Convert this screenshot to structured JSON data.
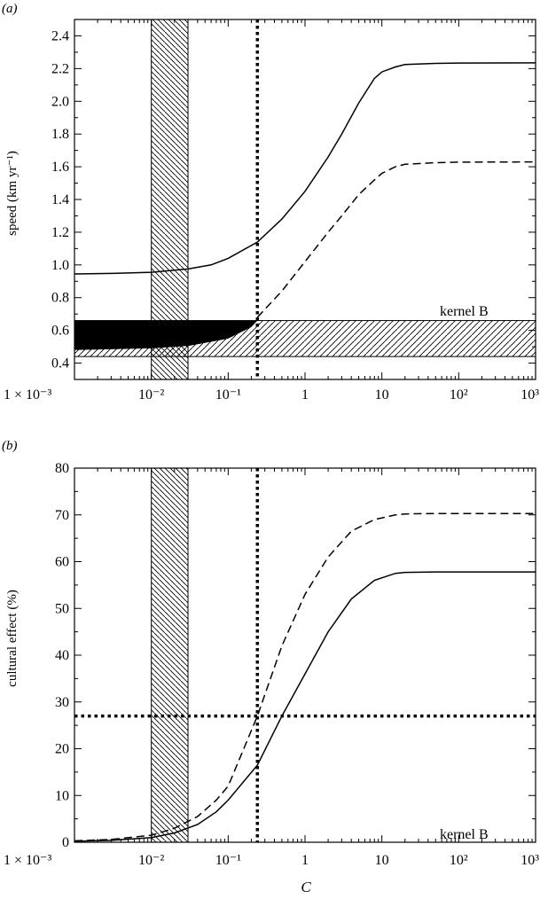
{
  "chart_data": [
    {
      "panel_label": "(a)",
      "type": "line",
      "xscale": "log",
      "xlim": [
        0.001,
        1000
      ],
      "ylim": [
        0.3,
        2.5
      ],
      "ylabel": "speed (km yr⁻¹)",
      "xlabel": "",
      "xtick_labels": [
        "1 × 10⁻³",
        "10⁻²",
        "10⁻¹",
        "1",
        "10",
        "10²",
        "10³"
      ],
      "ytick_labels": [
        "0.4",
        "0.6",
        "0.8",
        "1.0",
        "1.2",
        "1.4",
        "1.6",
        "1.8",
        "2.0",
        "2.2",
        "2.4"
      ],
      "annotation": "kernel B",
      "vertical_dotted_line_x": 0.24,
      "hatched_vertical_band_x": [
        0.01,
        0.03
      ],
      "hatched_horizontal_band_y": [
        0.44,
        0.66
      ],
      "series": [
        {
          "style": "solid",
          "x": [
            0.001,
            0.003,
            0.01,
            0.03,
            0.06,
            0.1,
            0.24,
            0.5,
            1,
            2,
            3,
            5,
            8,
            10,
            15,
            20,
            50,
            100,
            1000
          ],
          "y": [
            0.945,
            0.948,
            0.955,
            0.975,
            1.0,
            1.04,
            1.14,
            1.28,
            1.45,
            1.66,
            1.8,
            1.99,
            2.14,
            2.18,
            2.21,
            2.225,
            2.232,
            2.234,
            2.235
          ]
        },
        {
          "style": "dashed",
          "x": [
            0.24,
            0.5,
            1,
            2,
            3,
            5,
            8,
            10,
            15,
            20,
            50,
            100,
            1000
          ],
          "y": [
            0.68,
            0.84,
            1.02,
            1.2,
            1.3,
            1.43,
            1.52,
            1.56,
            1.6,
            1.615,
            1.625,
            1.628,
            1.63
          ]
        },
        {
          "style": "filled-region",
          "x": [
            0.001,
            0.01,
            0.03,
            0.1,
            0.2,
            0.24
          ],
          "y_low": [
            0.48,
            0.49,
            0.505,
            0.55,
            0.62,
            0.66
          ],
          "y_high": [
            0.66,
            0.66,
            0.66,
            0.66,
            0.66,
            0.66
          ]
        }
      ]
    },
    {
      "panel_label": "(b)",
      "type": "line",
      "xscale": "log",
      "xlim": [
        0.001,
        1000
      ],
      "ylim": [
        0,
        80
      ],
      "ylabel": "cultural effect (%)",
      "xlabel": "C",
      "xtick_labels": [
        "1 × 10⁻³",
        "10⁻²",
        "10⁻¹",
        "1",
        "10",
        "10²",
        "10³"
      ],
      "ytick_labels": [
        "0",
        "10",
        "20",
        "30",
        "40",
        "50",
        "60",
        "70",
        "80"
      ],
      "annotation": "kernel B",
      "vertical_dotted_line_x": 0.24,
      "horizontal_dotted_line_y": 27,
      "hatched_vertical_band_x": [
        0.01,
        0.03
      ],
      "series": [
        {
          "style": "solid",
          "x": [
            0.001,
            0.003,
            0.01,
            0.02,
            0.04,
            0.07,
            0.1,
            0.24,
            0.5,
            1,
            2,
            4,
            8,
            15,
            20,
            50,
            100,
            1000
          ],
          "y": [
            0.2,
            0.4,
            1.0,
            2.0,
            3.8,
            6.5,
            9,
            16.5,
            27,
            36,
            45,
            52,
            56,
            57.5,
            57.7,
            57.8,
            57.8,
            57.8
          ]
        },
        {
          "style": "dashed",
          "x": [
            0.001,
            0.003,
            0.01,
            0.02,
            0.04,
            0.07,
            0.1,
            0.24,
            0.5,
            1,
            2,
            4,
            8,
            15,
            20,
            50,
            100,
            1000
          ],
          "y": [
            0.3,
            0.6,
            1.5,
            3.0,
            5.5,
            9,
            12,
            27,
            42,
            53,
            61,
            66.5,
            69,
            70,
            70.2,
            70.3,
            70.3,
            70.3
          ]
        }
      ]
    }
  ]
}
